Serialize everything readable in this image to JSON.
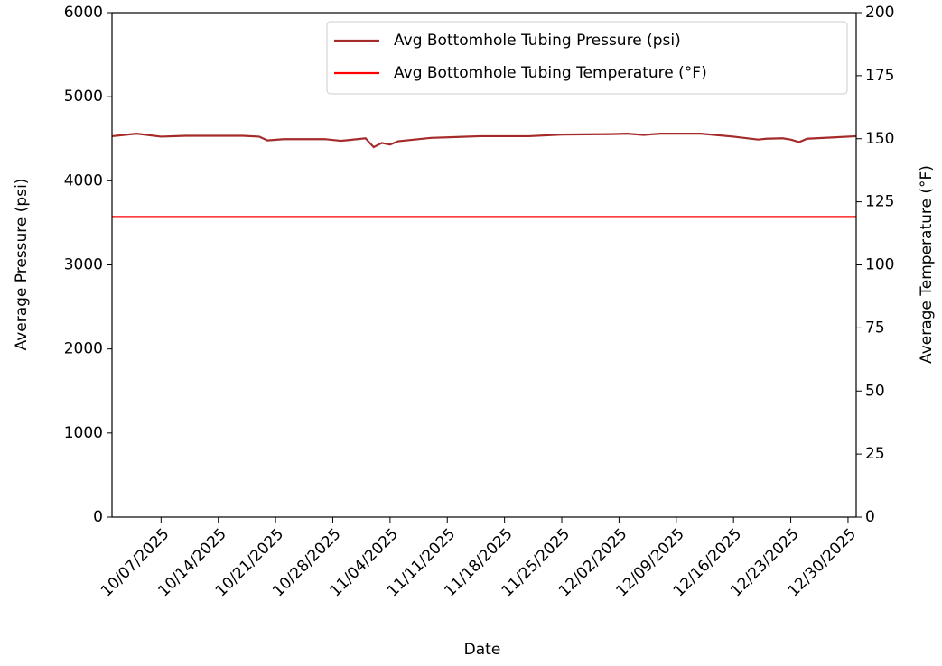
{
  "chart_data": {
    "type": "line",
    "x": [
      "2025-10-01",
      "2025-10-04",
      "2025-10-07",
      "2025-10-10",
      "2025-10-17",
      "2025-10-19",
      "2025-10-20",
      "2025-10-22",
      "2025-10-27",
      "2025-10-29",
      "2025-11-01",
      "2025-11-02",
      "2025-11-03",
      "2025-11-04",
      "2025-11-05",
      "2025-11-09",
      "2025-11-15",
      "2025-11-21",
      "2025-11-25",
      "2025-12-01",
      "2025-12-03",
      "2025-12-05",
      "2025-12-07",
      "2025-12-12",
      "2025-12-16",
      "2025-12-19",
      "2025-12-20",
      "2025-12-22",
      "2025-12-23",
      "2025-12-24",
      "2025-12-25",
      "2025-12-28",
      "2025-12-31"
    ],
    "series": [
      {
        "name": "Avg Bottomhole Tubing Pressure (psi)",
        "color": "#a52a2a",
        "axis": "y",
        "values": [
          4530,
          4560,
          4525,
          4535,
          4535,
          4525,
          4480,
          4495,
          4495,
          4475,
          4505,
          4400,
          4450,
          4430,
          4470,
          4510,
          4530,
          4530,
          4550,
          4555,
          4560,
          4545,
          4560,
          4560,
          4525,
          4490,
          4500,
          4505,
          4490,
          4460,
          4500,
          4515,
          4530
        ]
      },
      {
        "name": "Avg Bottomhole Tubing Temperature (°F)",
        "color": "#ff0000",
        "axis": "y2",
        "values": [
          119,
          119,
          119,
          119,
          119,
          119,
          119,
          119,
          119,
          119,
          119,
          119,
          119,
          119,
          119,
          119,
          119,
          119,
          119,
          119,
          119,
          119,
          119,
          119,
          119,
          119,
          119,
          119,
          119,
          119,
          119,
          119,
          119
        ]
      }
    ],
    "xlabel": "Date",
    "ylabel": "Average Pressure (psi)",
    "y2label": "Average Temperature (°F)",
    "xlim": [
      "2025-10-01",
      "2025-12-31"
    ],
    "xticks": [
      {
        "value": "2025-10-07",
        "label": "10/07/2025"
      },
      {
        "value": "2025-10-14",
        "label": "10/14/2025"
      },
      {
        "value": "2025-10-21",
        "label": "10/21/2025"
      },
      {
        "value": "2025-10-28",
        "label": "10/28/2025"
      },
      {
        "value": "2025-11-04",
        "label": "11/04/2025"
      },
      {
        "value": "2025-11-11",
        "label": "11/11/2025"
      },
      {
        "value": "2025-11-18",
        "label": "11/18/2025"
      },
      {
        "value": "2025-11-25",
        "label": "11/25/2025"
      },
      {
        "value": "2025-12-02",
        "label": "12/02/2025"
      },
      {
        "value": "2025-12-09",
        "label": "12/09/2025"
      },
      {
        "value": "2025-12-16",
        "label": "12/16/2025"
      },
      {
        "value": "2025-12-23",
        "label": "12/23/2025"
      },
      {
        "value": "2025-12-30",
        "label": "12/30/2025"
      }
    ],
    "ylim": [
      0,
      6000
    ],
    "yticks": [
      0,
      1000,
      2000,
      3000,
      4000,
      5000,
      6000
    ],
    "y2lim": [
      0,
      200
    ],
    "y2ticks": [
      0,
      25,
      50,
      75,
      100,
      125,
      150,
      175,
      200
    ],
    "legend": "upper right"
  }
}
